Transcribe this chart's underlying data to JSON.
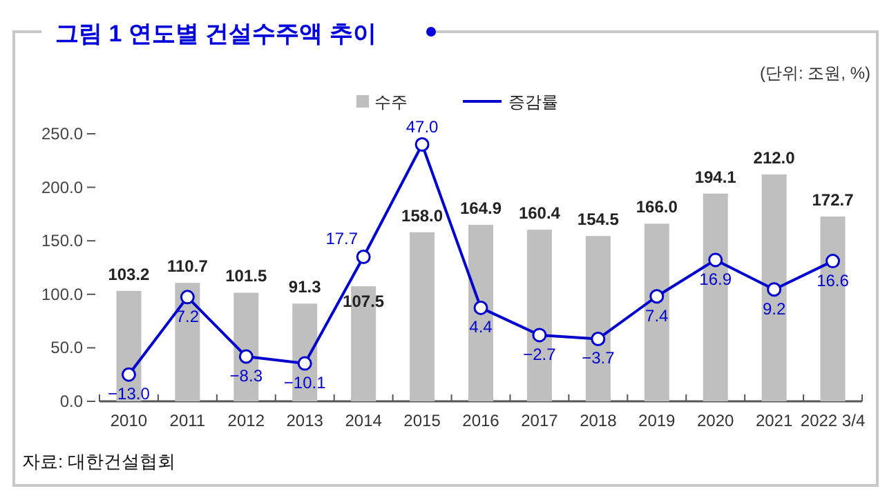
{
  "chart_data": {
    "type": "bar",
    "title": "그림 1 연도별 건설수주액 추이",
    "annotations": [
      "(단위: 조원, %)",
      "자료: 대한건설협회"
    ],
    "categories": [
      "2010",
      "2011",
      "2012",
      "2013",
      "2014",
      "2015",
      "2016",
      "2017",
      "2018",
      "2019",
      "2020",
      "2021",
      "2022 3/4"
    ],
    "ylim": [
      0,
      250
    ],
    "yticks": [
      {
        "value": 0,
        "label": "0.0"
      },
      {
        "value": 50,
        "label": "50.0"
      },
      {
        "value": 100,
        "label": "100.0"
      },
      {
        "value": 150,
        "label": "150.0"
      },
      {
        "value": 200,
        "label": "200.0"
      },
      {
        "value": 250,
        "label": "250.0"
      }
    ],
    "legend": "top",
    "grid": false,
    "series": [
      {
        "name": "수주",
        "color": "#bfbfbf",
        "values": [
          103.2,
          110.7,
          101.5,
          91.3,
          107.5,
          158.0,
          164.9,
          160.4,
          154.5,
          166.0,
          194.1,
          212.0,
          172.7
        ],
        "value_labels": [
          "103.2",
          "110.7",
          "101.5",
          "91.3",
          "107.5",
          "158.0",
          "164.9",
          "160.4",
          "154.5",
          "166.0",
          "194.1",
          "212.0",
          "172.7"
        ]
      },
      {
        "name": "증감률",
        "type": "line",
        "axis": "y2",
        "color": "#0000cc",
        "marker": "circle",
        "line_style": "solid",
        "values": [
          -13.0,
          7.2,
          -8.3,
          -10.1,
          17.7,
          47.0,
          4.4,
          -2.7,
          -3.7,
          7.4,
          16.9,
          9.2,
          16.6
        ],
        "value_labels": [
          "−13.0",
          "7.2",
          "−8.3",
          "−10.1",
          "17.7",
          "47.0",
          "4.4",
          "−2.7",
          "−3.7",
          "7.4",
          "16.9",
          "9.2",
          "16.6"
        ]
      }
    ]
  }
}
